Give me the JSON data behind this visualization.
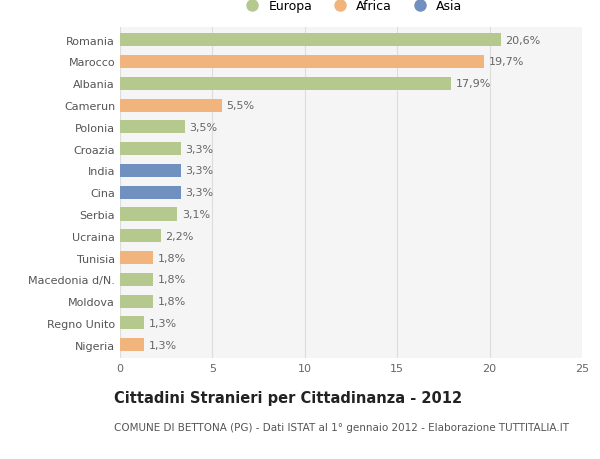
{
  "countries": [
    "Romania",
    "Marocco",
    "Albania",
    "Camerun",
    "Polonia",
    "Croazia",
    "India",
    "Cina",
    "Serbia",
    "Ucraina",
    "Tunisia",
    "Macedonia d/N.",
    "Moldova",
    "Regno Unito",
    "Nigeria"
  ],
  "values": [
    20.6,
    19.7,
    17.9,
    5.5,
    3.5,
    3.3,
    3.3,
    3.3,
    3.1,
    2.2,
    1.8,
    1.8,
    1.8,
    1.3,
    1.3
  ],
  "labels": [
    "20,6%",
    "19,7%",
    "17,9%",
    "5,5%",
    "3,5%",
    "3,3%",
    "3,3%",
    "3,3%",
    "3,1%",
    "2,2%",
    "1,8%",
    "1,8%",
    "1,8%",
    "1,3%",
    "1,3%"
  ],
  "continents": [
    "Europa",
    "Africa",
    "Europa",
    "Africa",
    "Europa",
    "Europa",
    "Asia",
    "Asia",
    "Europa",
    "Europa",
    "Africa",
    "Europa",
    "Europa",
    "Europa",
    "Africa"
  ],
  "colors": {
    "Europa": "#b5c98e",
    "Africa": "#f0b47c",
    "Asia": "#7090c0"
  },
  "legend_order": [
    "Europa",
    "Africa",
    "Asia"
  ],
  "xlim": [
    0,
    25
  ],
  "xticks": [
    0,
    5,
    10,
    15,
    20,
    25
  ],
  "title": "Cittadini Stranieri per Cittadinanza - 2012",
  "subtitle": "COMUNE DI BETTONA (PG) - Dati ISTAT al 1° gennaio 2012 - Elaborazione TUTTITALIA.IT",
  "background_color": "#ffffff",
  "plot_background": "#f5f5f5",
  "grid_color": "#dddddd",
  "bar_height": 0.6,
  "label_fontsize": 8.0,
  "tick_fontsize": 8.0,
  "title_fontsize": 10.5,
  "subtitle_fontsize": 7.5
}
